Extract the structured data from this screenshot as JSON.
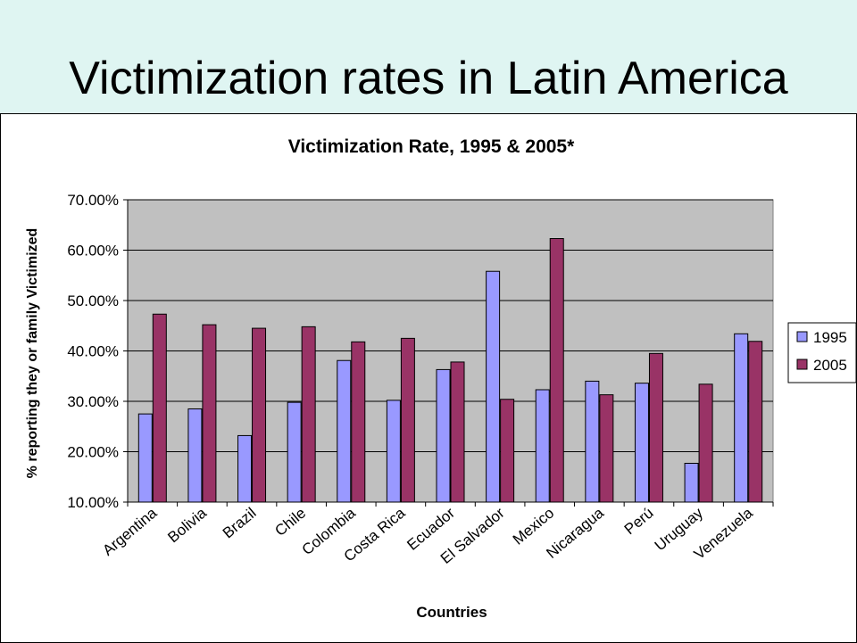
{
  "slide": {
    "title": "Victimization rates in Latin America"
  },
  "colors": {
    "title_band": "#dff5f2",
    "plot_bg": "#c0c0c0",
    "series_1995": "#9999ff",
    "series_2005": "#993366"
  },
  "chart_data": {
    "type": "bar",
    "title": "Victimization Rate, 1995 & 2005*",
    "xlabel": "Countries",
    "ylabel": "% reporting they or family Victimized",
    "ylim": [
      0.1,
      0.7
    ],
    "yticks": [
      "10.00%",
      "20.00%",
      "30.00%",
      "40.00%",
      "50.00%",
      "60.00%",
      "70.00%"
    ],
    "grid": true,
    "legend_position": "right",
    "categories": [
      "Argentina",
      "Bolivia",
      "Brazil",
      "Chile",
      "Colombia",
      "Costa Rica",
      "Ecuador",
      "El Salvador",
      "Mexico",
      "Nicaragua",
      "Perú",
      "Uruguay",
      "Venezuela"
    ],
    "series": [
      {
        "name": "1995",
        "color": "#9999ff",
        "values": [
          0.275,
          0.285,
          0.232,
          0.298,
          0.381,
          0.302,
          0.363,
          0.558,
          0.323,
          0.34,
          0.336,
          0.177,
          0.434
        ]
      },
      {
        "name": "2005",
        "color": "#993366",
        "values": [
          0.473,
          0.452,
          0.445,
          0.448,
          0.418,
          0.425,
          0.378,
          0.304,
          0.623,
          0.313,
          0.395,
          0.334,
          0.419
        ]
      }
    ]
  }
}
